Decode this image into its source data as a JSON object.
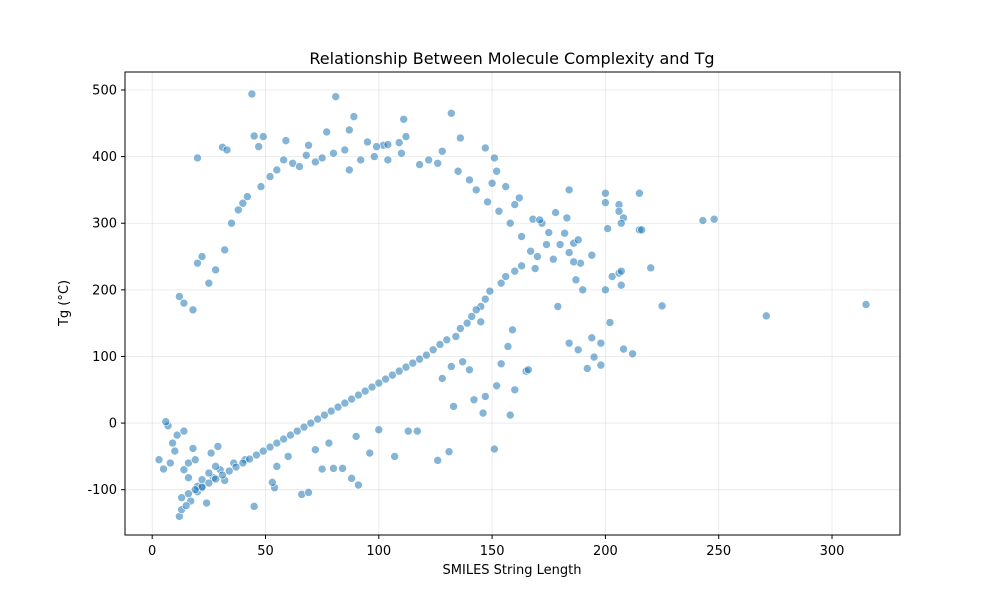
{
  "chart_data": {
    "type": "scatter",
    "title": "Relationship Between Molecule Complexity and Tg",
    "xlabel": "SMILES String Length",
    "ylabel": "Tg (°C)",
    "xlim": [
      -12,
      330
    ],
    "ylim": [
      -168,
      527
    ],
    "xticks": [
      0,
      50,
      100,
      150,
      200,
      250,
      300
    ],
    "yticks": [
      -100,
      0,
      100,
      200,
      300,
      400,
      500
    ],
    "grid": true,
    "marker_color": "#1f77b4",
    "marker_alpha": 0.55,
    "points": [
      [
        44,
        494
      ],
      [
        81,
        490
      ],
      [
        89,
        460
      ],
      [
        132,
        465
      ],
      [
        111,
        456
      ],
      [
        77,
        437
      ],
      [
        87,
        440
      ],
      [
        45,
        431
      ],
      [
        49,
        430
      ],
      [
        112,
        430
      ],
      [
        59,
        424
      ],
      [
        136,
        428
      ],
      [
        102,
        417
      ],
      [
        109,
        421
      ],
      [
        104,
        418
      ],
      [
        147,
        413
      ],
      [
        31,
        414
      ],
      [
        47,
        415
      ],
      [
        69,
        417
      ],
      [
        95,
        422
      ],
      [
        33,
        410
      ],
      [
        20,
        398
      ],
      [
        87,
        380
      ],
      [
        99,
        415
      ],
      [
        128,
        408
      ],
      [
        151,
        398
      ],
      [
        156,
        355
      ],
      [
        152,
        378
      ],
      [
        150,
        360
      ],
      [
        162,
        338
      ],
      [
        160,
        328
      ],
      [
        168,
        306
      ],
      [
        172,
        300
      ],
      [
        183,
        308
      ],
      [
        184,
        350
      ],
      [
        178,
        316
      ],
      [
        171,
        305
      ],
      [
        175,
        286
      ],
      [
        182,
        285
      ],
      [
        180,
        268
      ],
      [
        186,
        270
      ],
      [
        188,
        275
      ],
      [
        184,
        256
      ],
      [
        189,
        240
      ],
      [
        186,
        242
      ],
      [
        187,
        215
      ],
      [
        190,
        200
      ],
      [
        194,
        252
      ],
      [
        200,
        345
      ],
      [
        206,
        328
      ],
      [
        206,
        318
      ],
      [
        208,
        308
      ],
      [
        207,
        300
      ],
      [
        200,
        331
      ],
      [
        201,
        292
      ],
      [
        215,
        345
      ],
      [
        215,
        290
      ],
      [
        216,
        290
      ],
      [
        220,
        233
      ],
      [
        203,
        220
      ],
      [
        206,
        225
      ],
      [
        207,
        228
      ],
      [
        200,
        200
      ],
      [
        207,
        207
      ],
      [
        202,
        151
      ],
      [
        184,
        120
      ],
      [
        188,
        110
      ],
      [
        194,
        128
      ],
      [
        195,
        99
      ],
      [
        198,
        87
      ],
      [
        192,
        82
      ],
      [
        198,
        120
      ],
      [
        208,
        111
      ],
      [
        212,
        104
      ],
      [
        179,
        175
      ],
      [
        225,
        176
      ],
      [
        243,
        304
      ],
      [
        248,
        306
      ],
      [
        271,
        161
      ],
      [
        315,
        178
      ],
      [
        159,
        140
      ],
      [
        160,
        50
      ],
      [
        158,
        12
      ],
      [
        165,
        78
      ],
      [
        166,
        80
      ],
      [
        157,
        115
      ],
      [
        154,
        89
      ],
      [
        152,
        56
      ],
      [
        151,
        -39
      ],
      [
        146,
        15
      ],
      [
        147,
        40
      ],
      [
        142,
        35
      ],
      [
        133,
        25
      ],
      [
        140,
        80
      ],
      [
        145,
        152
      ],
      [
        137,
        92
      ],
      [
        132,
        85
      ],
      [
        128,
        67
      ],
      [
        131,
        -43
      ],
      [
        126,
        -56
      ],
      [
        113,
        -12
      ],
      [
        117,
        -12
      ],
      [
        107,
        -50
      ],
      [
        96,
        -45
      ],
      [
        91,
        -93
      ],
      [
        84,
        -68
      ],
      [
        66,
        -107
      ],
      [
        69,
        -104
      ],
      [
        54,
        -97
      ],
      [
        45,
        -125
      ],
      [
        53,
        -89
      ],
      [
        75,
        -69
      ],
      [
        88,
        -83
      ],
      [
        80,
        -68
      ],
      [
        17,
        -117
      ],
      [
        24,
        -120
      ],
      [
        12,
        -140
      ],
      [
        13,
        -130
      ],
      [
        15,
        -124
      ],
      [
        20,
        -103
      ],
      [
        22,
        -97
      ],
      [
        27,
        -82
      ],
      [
        32,
        -86
      ],
      [
        16,
        -82
      ],
      [
        8,
        -60
      ],
      [
        5,
        -69
      ],
      [
        3,
        -55
      ],
      [
        11,
        -18
      ],
      [
        7,
        -4
      ],
      [
        6,
        2
      ],
      [
        14,
        -12
      ],
      [
        18,
        -38
      ],
      [
        9,
        -30
      ],
      [
        10,
        -42
      ],
      [
        30,
        -70
      ],
      [
        36,
        -60
      ],
      [
        41,
        -55
      ],
      [
        55,
        -65
      ],
      [
        60,
        -50
      ],
      [
        72,
        -40
      ],
      [
        78,
        -30
      ],
      [
        90,
        -20
      ],
      [
        100,
        -10
      ],
      [
        20,
        -95
      ],
      [
        22,
        -85
      ],
      [
        25,
        -75
      ],
      [
        28,
        -65
      ],
      [
        14,
        -70
      ],
      [
        16,
        -60
      ],
      [
        19,
        -55
      ],
      [
        26,
        -45
      ],
      [
        29,
        -35
      ],
      [
        12,
        190
      ],
      [
        14,
        180
      ],
      [
        18,
        170
      ],
      [
        20,
        240
      ],
      [
        22,
        250
      ],
      [
        25,
        210
      ],
      [
        28,
        230
      ],
      [
        32,
        260
      ],
      [
        35,
        300
      ],
      [
        38,
        320
      ],
      [
        40,
        330
      ],
      [
        42,
        340
      ],
      [
        48,
        355
      ],
      [
        52,
        370
      ],
      [
        55,
        380
      ],
      [
        58,
        395
      ],
      [
        62,
        390
      ],
      [
        65,
        385
      ],
      [
        68,
        402
      ],
      [
        72,
        392
      ],
      [
        75,
        398
      ],
      [
        80,
        405
      ],
      [
        85,
        410
      ],
      [
        92,
        395
      ],
      [
        98,
        400
      ],
      [
        104,
        395
      ],
      [
        110,
        405
      ],
      [
        118,
        388
      ],
      [
        122,
        395
      ],
      [
        126,
        390
      ],
      [
        135,
        378
      ],
      [
        140,
        365
      ],
      [
        143,
        350
      ],
      [
        148,
        332
      ],
      [
        153,
        318
      ],
      [
        158,
        300
      ],
      [
        163,
        280
      ],
      [
        167,
        258
      ],
      [
        170,
        250
      ],
      [
        174,
        268
      ],
      [
        177,
        246
      ],
      [
        169,
        232
      ],
      [
        163,
        236
      ],
      [
        160,
        228
      ],
      [
        156,
        220
      ],
      [
        154,
        210
      ],
      [
        149,
        198
      ],
      [
        147,
        186
      ],
      [
        145,
        175
      ],
      [
        143,
        170
      ],
      [
        141,
        160
      ],
      [
        139,
        150
      ],
      [
        136,
        142
      ],
      [
        134,
        130
      ],
      [
        130,
        125
      ],
      [
        127,
        118
      ],
      [
        124,
        110
      ],
      [
        121,
        102
      ],
      [
        118,
        96
      ],
      [
        115,
        90
      ],
      [
        112,
        84
      ],
      [
        109,
        78
      ],
      [
        106,
        72
      ],
      [
        103,
        66
      ],
      [
        100,
        60
      ],
      [
        97,
        54
      ],
      [
        94,
        48
      ],
      [
        91,
        42
      ],
      [
        88,
        36
      ],
      [
        85,
        30
      ],
      [
        82,
        24
      ],
      [
        79,
        18
      ],
      [
        76,
        12
      ],
      [
        73,
        6
      ],
      [
        70,
        0
      ],
      [
        67,
        -6
      ],
      [
        64,
        -12
      ],
      [
        61,
        -18
      ],
      [
        58,
        -24
      ],
      [
        55,
        -30
      ],
      [
        52,
        -36
      ],
      [
        49,
        -42
      ],
      [
        46,
        -48
      ],
      [
        43,
        -54
      ],
      [
        40,
        -60
      ],
      [
        37,
        -66
      ],
      [
        34,
        -72
      ],
      [
        31,
        -78
      ],
      [
        28,
        -84
      ],
      [
        25,
        -90
      ],
      [
        22,
        -96
      ],
      [
        19,
        -100
      ],
      [
        16,
        -106
      ],
      [
        13,
        -112
      ]
    ]
  }
}
